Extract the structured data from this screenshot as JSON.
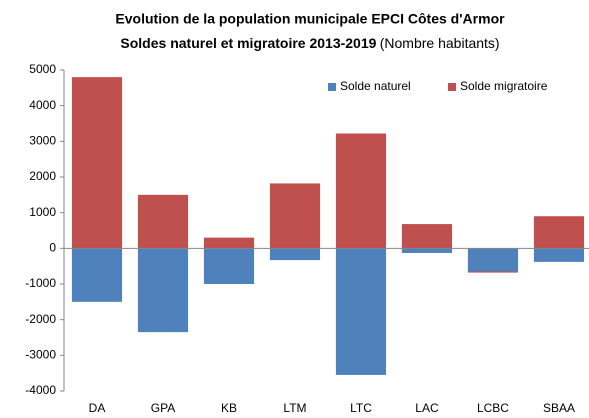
{
  "chart_data": {
    "type": "stacked_bar",
    "title": "Evolution de la population municipale  EPCI Côtes d'Armor",
    "subtitle": "Soldes naturel et migratoire 2013-2019",
    "subtitle_note": "(Nombre habitants)",
    "categories": [
      "DA",
      "GPA",
      "KB",
      "LTM",
      "LTC",
      "LAC",
      "LCBC",
      "SBAA"
    ],
    "series": [
      {
        "name": "Solde naturel",
        "color": "#4f81bd",
        "values": [
          -1500,
          -2350,
          -1000,
          -330,
          -3550,
          -130,
          -650,
          -380
        ]
      },
      {
        "name": "Solde migratoire",
        "color": "#c0504d",
        "values": [
          4800,
          1500,
          300,
          1820,
          3220,
          680,
          -30,
          900
        ]
      }
    ],
    "ylim": [
      -4000,
      5000
    ],
    "yticks": [
      -4000,
      -3000,
      -2000,
      -1000,
      0,
      1000,
      2000,
      3000,
      4000,
      5000
    ],
    "grid": false,
    "legend": "top-right"
  }
}
